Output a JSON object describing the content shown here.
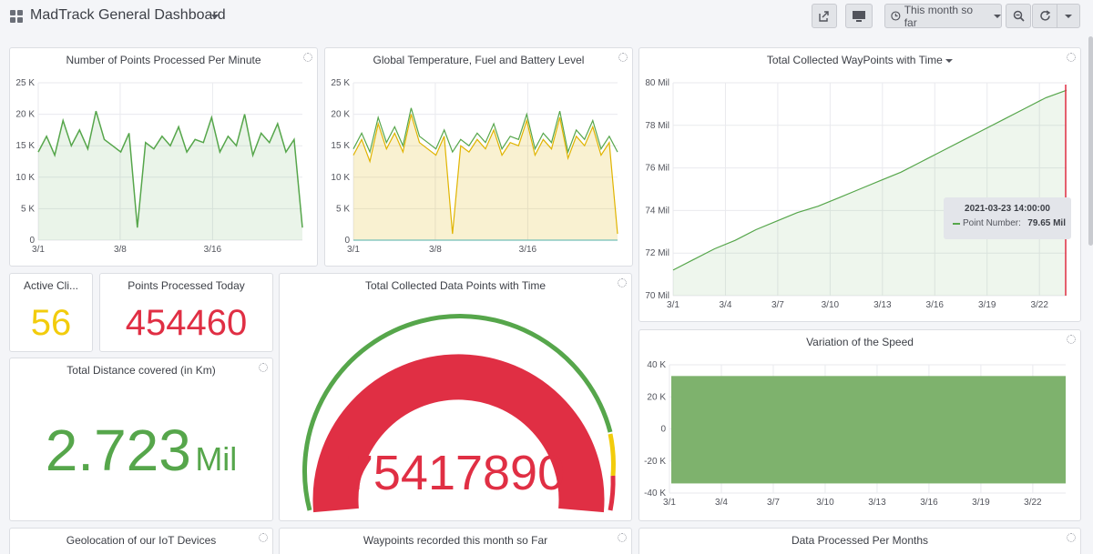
{
  "header": {
    "title": "MadTrack General Dashboard",
    "time_range": "This month so far"
  },
  "panels": {
    "points_per_minute": {
      "title": "Number of Points Processed Per Minute"
    },
    "global_temp": {
      "title": "Global Temperature, Fuel and Battery Level"
    },
    "waypoints_time": {
      "title": "Total Collected WayPoints with Time"
    },
    "active_clients": {
      "title": "Active Cli...",
      "value": "56",
      "color": "#f2cc0c"
    },
    "points_today": {
      "title": "Points Processed Today",
      "value": "454460",
      "color": "#e02f44"
    },
    "distance": {
      "title": "Total Distance covered (in Km)",
      "value": "2.723",
      "unit": "Mil",
      "color": "#56a64b"
    },
    "data_points_gauge": {
      "title": "Total Collected Data Points with Time",
      "value": "75417890",
      "color": "#e02f44"
    },
    "speed": {
      "title": "Variation of the Speed"
    },
    "geolocation": {
      "title": "Geolocation of our IoT Devices"
    },
    "waypoints_month": {
      "title": "Waypoints recorded this month so Far"
    },
    "data_per_month": {
      "title": "Data Processed Per Months"
    }
  },
  "tooltip": {
    "time": "2021-03-23 14:00:00",
    "series": "Point Number:",
    "value": "79.65 Mil"
  },
  "chart_data": [
    {
      "type": "line",
      "id": "points_per_minute",
      "title": "Number of Points Processed Per Minute",
      "x_ticks": [
        "3/1",
        "3/8",
        "3/16"
      ],
      "y_ticks": [
        "0",
        "5 K",
        "10 K",
        "15 K",
        "20 K",
        "25 K"
      ],
      "ylim": [
        0,
        25000
      ],
      "series": [
        {
          "values": [
            14000,
            16500,
            13500,
            19000,
            15000,
            17500,
            14500,
            20500,
            16000,
            15000,
            14000,
            17000,
            2000,
            15500,
            14500,
            16500,
            15000,
            18000,
            14000,
            16000,
            15500,
            19500,
            14000,
            16500,
            15000,
            20000,
            13500,
            17000,
            15500,
            18500,
            14000,
            16000,
            2000
          ]
        }
      ],
      "color": "#56a64b"
    },
    {
      "type": "area",
      "id": "global_temp",
      "title": "Global Temperature, Fuel and Battery Level",
      "x_ticks": [
        "3/1",
        "3/8",
        "3/16"
      ],
      "y_ticks": [
        "0",
        "5 K",
        "10 K",
        "15 K",
        "20 K",
        "25 K"
      ],
      "ylim": [
        0,
        25000
      ],
      "series": [
        {
          "values": [
            13500,
            16000,
            12500,
            18500,
            14500,
            17000,
            14000,
            20000,
            15500,
            14500,
            13500,
            16500,
            1000,
            15000,
            14000,
            16000,
            14500,
            17500,
            13500,
            15500,
            15000,
            19000,
            13500,
            16000,
            14500,
            19500,
            13000,
            16500,
            15000,
            18000,
            13500,
            15500,
            1000
          ],
          "color": "#e0b400"
        },
        {
          "values": [
            14500,
            17000,
            14000,
            19500,
            15500,
            18000,
            15000,
            21000,
            16500,
            15500,
            14500,
            17500,
            14000,
            16000,
            15000,
            17000,
            15500,
            18500,
            14500,
            16500,
            16000,
            20000,
            14500,
            17000,
            15500,
            20500,
            14000,
            17500,
            16000,
            19000,
            14500,
            16500,
            14000
          ],
          "color": "#56a64b"
        },
        {
          "values": [
            0,
            0
          ],
          "color": "#73bfb8"
        }
      ]
    },
    {
      "type": "area",
      "id": "waypoints_time",
      "title": "Total Collected WayPoints with Time",
      "x_ticks": [
        "3/1",
        "3/4",
        "3/7",
        "3/10",
        "3/13",
        "3/16",
        "3/19",
        "3/22"
      ],
      "y_ticks": [
        "70 Mil",
        "72 Mil",
        "74 Mil",
        "76 Mil",
        "78 Mil",
        "80 Mil"
      ],
      "ylim": [
        70,
        80
      ],
      "series": [
        {
          "name": "Point Number",
          "values": [
            71.2,
            71.7,
            72.2,
            72.6,
            73.1,
            73.5,
            73.9,
            74.2,
            74.6,
            75.0,
            75.4,
            75.8,
            76.3,
            76.8,
            77.3,
            77.8,
            78.3,
            78.8,
            79.3,
            79.65
          ]
        }
      ],
      "color": "#56a64b"
    },
    {
      "type": "area",
      "id": "speed",
      "title": "Variation of the Speed",
      "x_ticks": [
        "3/1",
        "3/4",
        "3/7",
        "3/10",
        "3/13",
        "3/16",
        "3/19",
        "3/22"
      ],
      "y_ticks": [
        "-40 K",
        "-20 K",
        "0",
        "20 K",
        "40 K"
      ],
      "ylim": [
        -40000,
        40000
      ],
      "series": [
        {
          "range": [
            -34000,
            33000
          ]
        }
      ],
      "color": "#7eb26d"
    }
  ]
}
